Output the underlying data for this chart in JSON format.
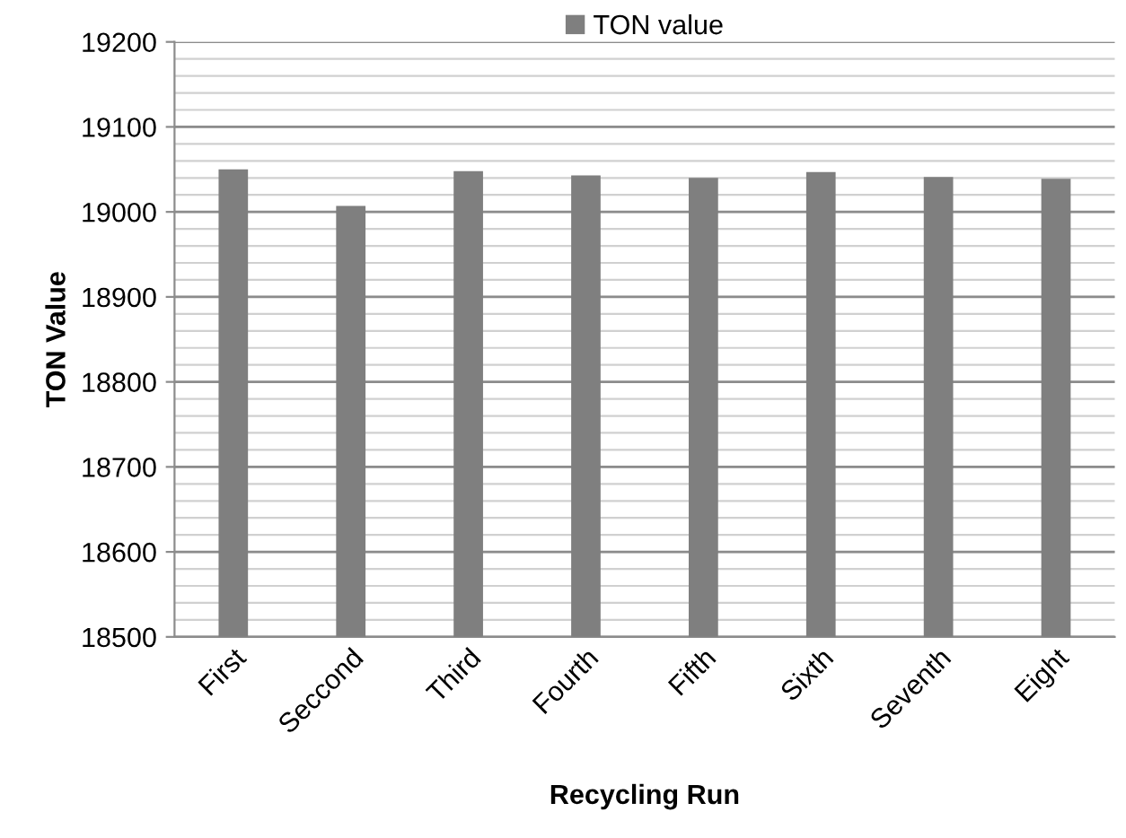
{
  "chart_data": {
    "type": "bar",
    "xlabel": "Recycling Run",
    "ylabel": "TON Value",
    "categories": [
      "First",
      "Seccond",
      "Third",
      "Fourth",
      "Fifth",
      "Sixth",
      "Seventh",
      "Eight"
    ],
    "series": [
      {
        "name": "TON value",
        "color": "#7f7f7f",
        "values": [
          19050,
          19007,
          19048,
          19043,
          19040,
          19047,
          19041,
          19039
        ]
      }
    ],
    "ylim": [
      18500,
      19200
    ],
    "yticks": [
      18500,
      18600,
      18700,
      18800,
      18900,
      19000,
      19100,
      19200
    ],
    "grid": "y",
    "legend": "top"
  }
}
